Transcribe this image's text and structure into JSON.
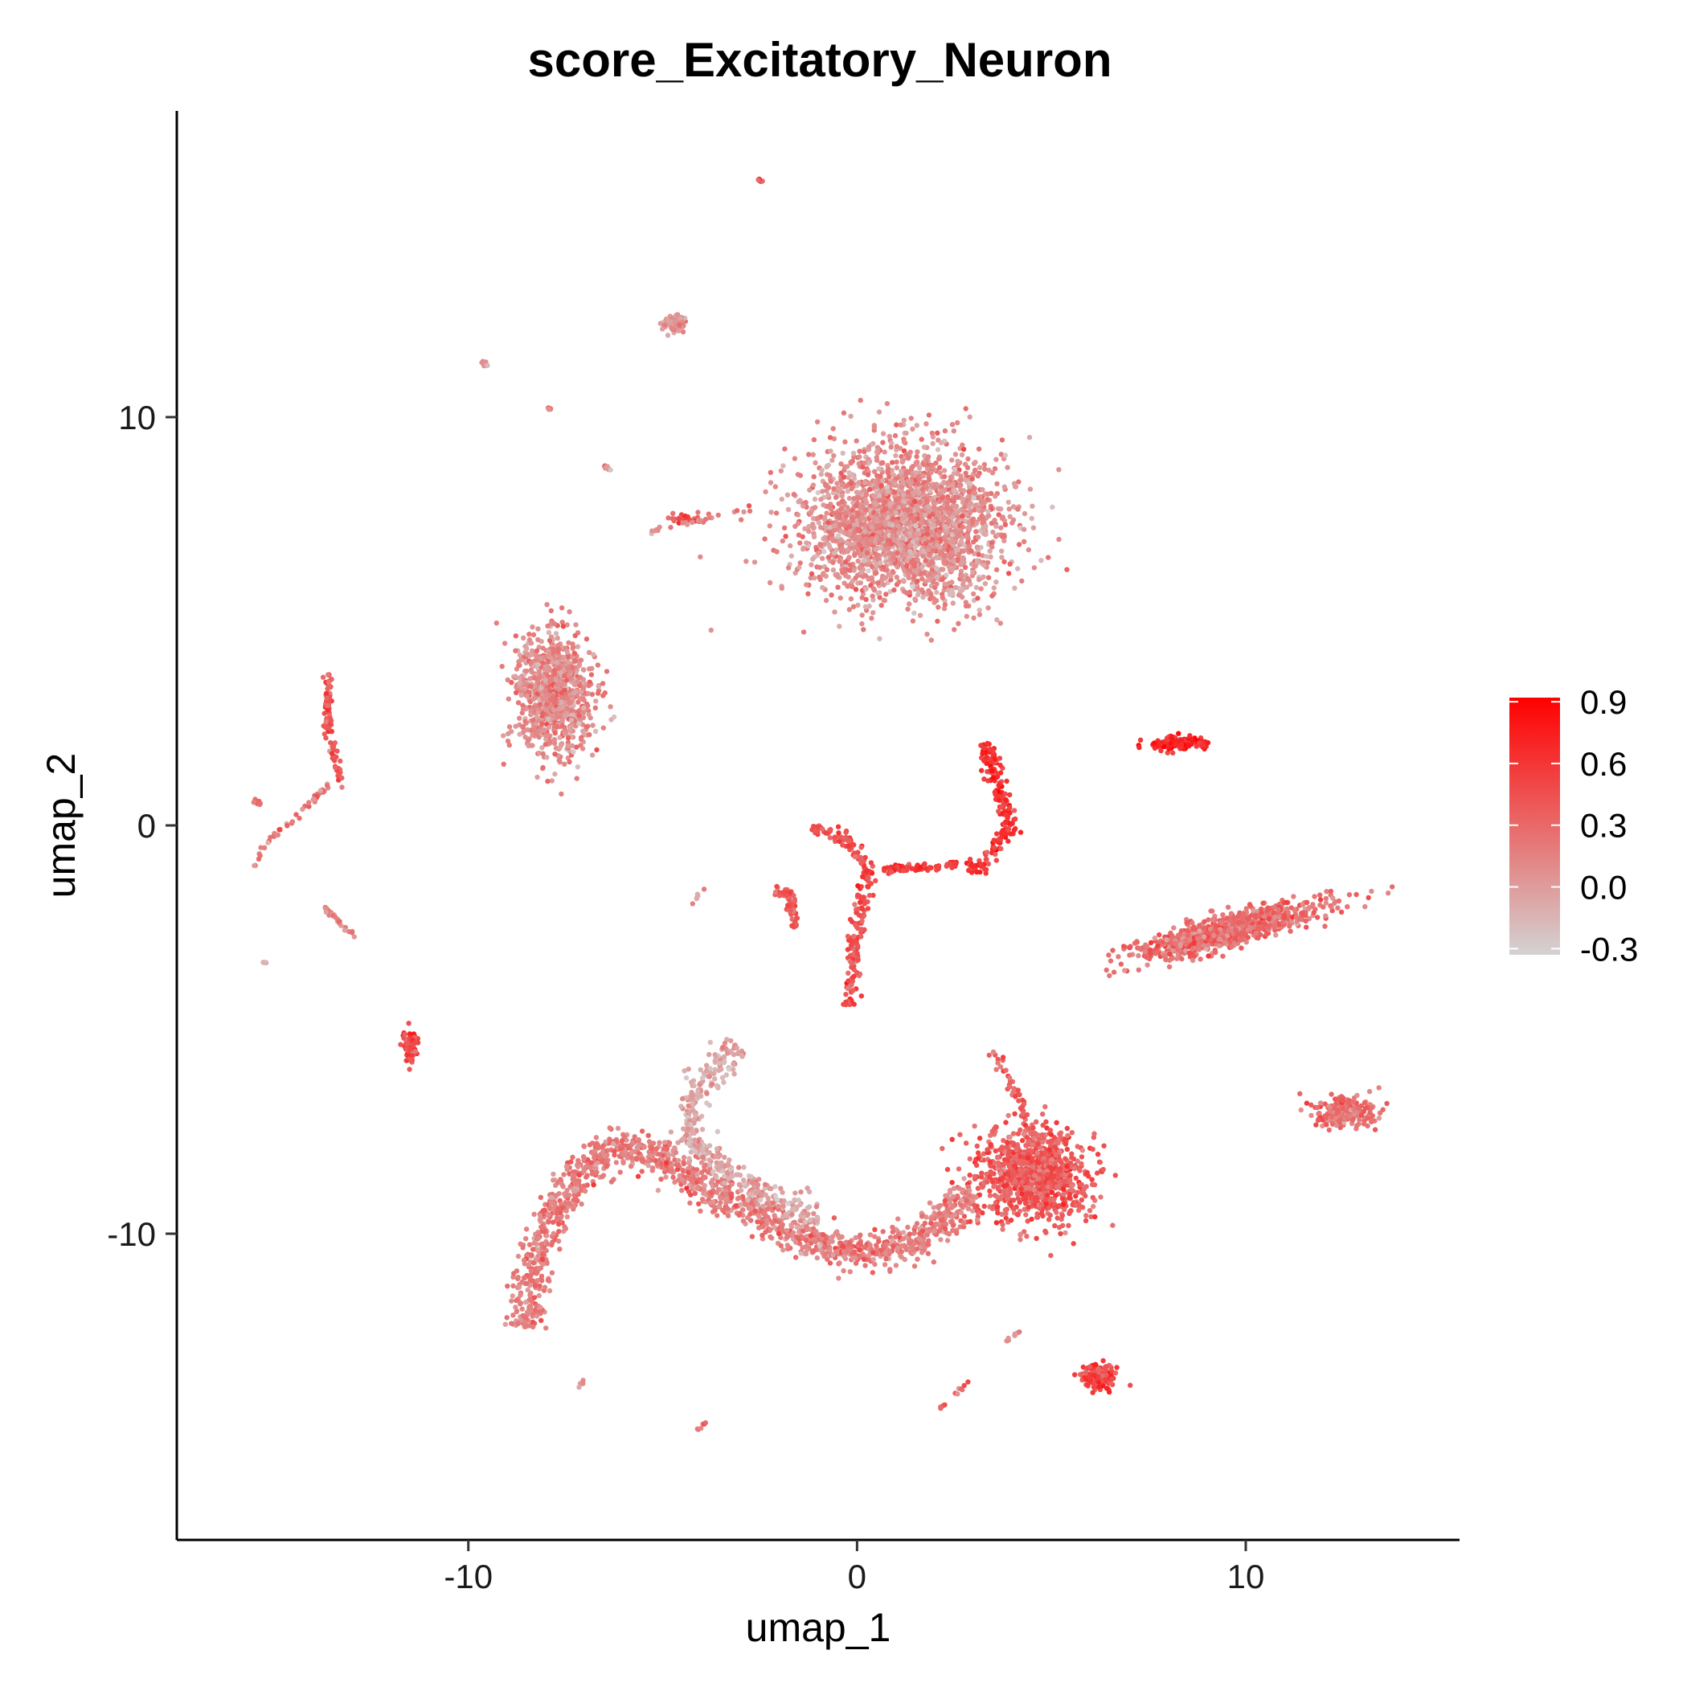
{
  "chart_data": {
    "type": "scatter",
    "title": "score_Excitatory_Neuron",
    "xlabel": "umap_1",
    "ylabel": "umap_2",
    "xlim": [
      -17.5,
      15.5
    ],
    "ylim": [
      -17.5,
      17.5
    ],
    "x_ticks": [
      -10,
      0,
      10
    ],
    "x_tick_labels": [
      "-10",
      "0",
      "10"
    ],
    "y_ticks": [
      -10,
      0,
      10
    ],
    "y_tick_labels": [
      "-10",
      "0",
      "10"
    ],
    "grid": false,
    "legend_position": "right",
    "color_scale": {
      "low_color": "#d3d3d3",
      "high_color": "#ff0000",
      "min": -0.33,
      "max": 0.92,
      "breaks": [
        0.9,
        0.6,
        0.3,
        0.0,
        -0.3
      ],
      "break_labels": [
        "0.9",
        "0.6",
        "0.3",
        "0.0",
        "-0.3"
      ]
    },
    "clusters": [
      {
        "x": 1.2,
        "y": 7.4,
        "sx": 2.3,
        "sy": 1.7,
        "n": 2600,
        "score": 0.08
      },
      {
        "x": -7.8,
        "y": 3.2,
        "sx": 0.9,
        "sy": 1.3,
        "n": 900,
        "score": 0.1
      },
      {
        "x": 9.5,
        "y": -2.6,
        "sx": 2.2,
        "sy": 0.35,
        "n": 900,
        "score": 0.25,
        "rotate": 0.25
      },
      {
        "x": 4.5,
        "y": -8.6,
        "sx": 1.3,
        "sy": 1.0,
        "n": 1000,
        "score": 0.38
      },
      {
        "x": 12.5,
        "y": -7.0,
        "sx": 0.8,
        "sy": 0.35,
        "n": 220,
        "score": 0.25
      },
      {
        "x": 6.2,
        "y": -13.5,
        "sx": 0.4,
        "sy": 0.25,
        "n": 180,
        "score": 0.5
      },
      {
        "x": 8.2,
        "y": 2.0,
        "sx": 0.7,
        "sy": 0.15,
        "n": 130,
        "score": 0.65
      },
      {
        "x": -11.5,
        "y": -5.4,
        "sx": 0.15,
        "sy": 0.4,
        "n": 90,
        "score": 0.5
      },
      {
        "x": -4.7,
        "y": 12.3,
        "sx": 0.3,
        "sy": 0.2,
        "n": 70,
        "score": 0.05
      },
      {
        "x": -4.4,
        "y": 7.5,
        "sx": 0.4,
        "sy": 0.1,
        "n": 30,
        "score": 0.35
      },
      {
        "x": -2.5,
        "y": 15.8,
        "sx": 0.06,
        "sy": 0.06,
        "n": 8,
        "score": 0.4
      },
      {
        "x": -9.6,
        "y": 11.3,
        "sx": 0.08,
        "sy": 0.06,
        "n": 8,
        "score": 0.0
      },
      {
        "x": -7.9,
        "y": 10.2,
        "sx": 0.06,
        "sy": 0.06,
        "n": 5,
        "score": 0.25
      }
    ],
    "paths": [
      {
        "pts": [
          [
            -8.5,
            -12.3
          ],
          [
            -8.3,
            -10.5
          ],
          [
            -7.8,
            -9.5
          ],
          [
            -7.0,
            -8.3
          ],
          [
            -5.8,
            -7.8
          ],
          [
            -4.9,
            -8.2
          ],
          [
            -3.8,
            -8.9
          ],
          [
            -2.5,
            -9.6
          ],
          [
            -1.0,
            -10.3
          ],
          [
            0.5,
            -10.5
          ],
          [
            1.8,
            -10.0
          ],
          [
            3.0,
            -9.0
          ]
        ],
        "width": 0.45,
        "n": 1400,
        "score": 0.18
      },
      {
        "pts": [
          [
            -3.1,
            -5.4
          ],
          [
            -4.2,
            -6.6
          ],
          [
            -4.3,
            -7.8
          ],
          [
            -3.0,
            -8.7
          ],
          [
            -1.0,
            -9.7
          ]
        ],
        "width": 0.35,
        "n": 400,
        "score": -0.05
      },
      {
        "pts": [
          [
            3.5,
            -5.5
          ],
          [
            4.2,
            -6.8
          ],
          [
            4.6,
            -7.8
          ]
        ],
        "width": 0.15,
        "n": 50,
        "score": 0.35
      },
      {
        "pts": [
          [
            -1.2,
            0.0
          ],
          [
            -0.3,
            -0.3
          ],
          [
            0.3,
            -1.1
          ],
          [
            0.0,
            -2.4
          ],
          [
            -0.2,
            -4.4
          ]
        ],
        "width": 0.18,
        "n": 220,
        "score": 0.45
      },
      {
        "pts": [
          [
            -2.1,
            -1.6
          ],
          [
            -1.7,
            -1.7
          ],
          [
            -1.6,
            -2.5
          ]
        ],
        "width": 0.12,
        "n": 60,
        "score": 0.4
      },
      {
        "pts": [
          [
            0.7,
            -1.1
          ],
          [
            2.2,
            -1.0
          ],
          [
            3.0,
            -0.9
          ]
        ],
        "width": 0.1,
        "n": 70,
        "score": 0.55
      },
      {
        "pts": [
          [
            3.3,
            2.0
          ],
          [
            3.6,
            1.0
          ],
          [
            4.0,
            0.0
          ],
          [
            3.3,
            -0.9
          ],
          [
            2.9,
            -1.2
          ]
        ],
        "width": 0.22,
        "n": 190,
        "score": 0.62
      },
      {
        "pts": [
          [
            -13.6,
            3.7
          ],
          [
            -13.6,
            2.3
          ],
          [
            -13.4,
            1.5
          ],
          [
            -13.2,
            0.9
          ]
        ],
        "width": 0.1,
        "n": 90,
        "score": 0.4
      },
      {
        "pts": [
          [
            -13.6,
            1.0
          ],
          [
            -14.3,
            0.3
          ],
          [
            -15.1,
            -0.3
          ],
          [
            -15.5,
            -1.0
          ]
        ],
        "width": 0.07,
        "n": 45,
        "score": 0.2
      },
      {
        "pts": [
          [
            -15.6,
            0.6
          ],
          [
            -15.2,
            0.5
          ]
        ],
        "width": 0.05,
        "n": 8,
        "score": 0.3
      },
      {
        "pts": [
          [
            -13.7,
            -2.0
          ],
          [
            -13.3,
            -2.4
          ],
          [
            -12.9,
            -2.7
          ]
        ],
        "width": 0.05,
        "n": 30,
        "score": 0.15
      },
      {
        "pts": [
          [
            -5.3,
            7.2
          ],
          [
            -3.5,
            7.6
          ],
          [
            -2.6,
            7.8
          ]
        ],
        "width": 0.07,
        "n": 25,
        "score": 0.1
      },
      {
        "pts": [
          [
            -6.5,
            8.8
          ],
          [
            -6.3,
            8.7
          ]
        ],
        "width": 0.05,
        "n": 8,
        "score": 0.05
      },
      {
        "pts": [
          [
            2.1,
            -14.3
          ],
          [
            2.9,
            -13.6
          ]
        ],
        "width": 0.05,
        "n": 12,
        "score": 0.3
      },
      {
        "pts": [
          [
            3.7,
            -12.7
          ],
          [
            4.3,
            -12.3
          ]
        ],
        "width": 0.05,
        "n": 10,
        "score": 0.05
      },
      {
        "pts": [
          [
            -7.2,
            -13.8
          ],
          [
            -7.0,
            -13.6
          ]
        ],
        "width": 0.05,
        "n": 6,
        "score": 0.0
      },
      {
        "pts": [
          [
            -4.1,
            -14.8
          ],
          [
            -3.9,
            -14.6
          ]
        ],
        "width": 0.05,
        "n": 6,
        "score": 0.3
      },
      {
        "pts": [
          [
            -4.3,
            -1.9
          ],
          [
            -3.9,
            -1.6
          ]
        ],
        "width": 0.05,
        "n": 6,
        "score": 0.0
      },
      {
        "pts": [
          [
            -15.3,
            -3.4
          ],
          [
            -15.2,
            -3.3
          ]
        ],
        "width": 0.04,
        "n": 4,
        "score": 0.0
      }
    ]
  }
}
